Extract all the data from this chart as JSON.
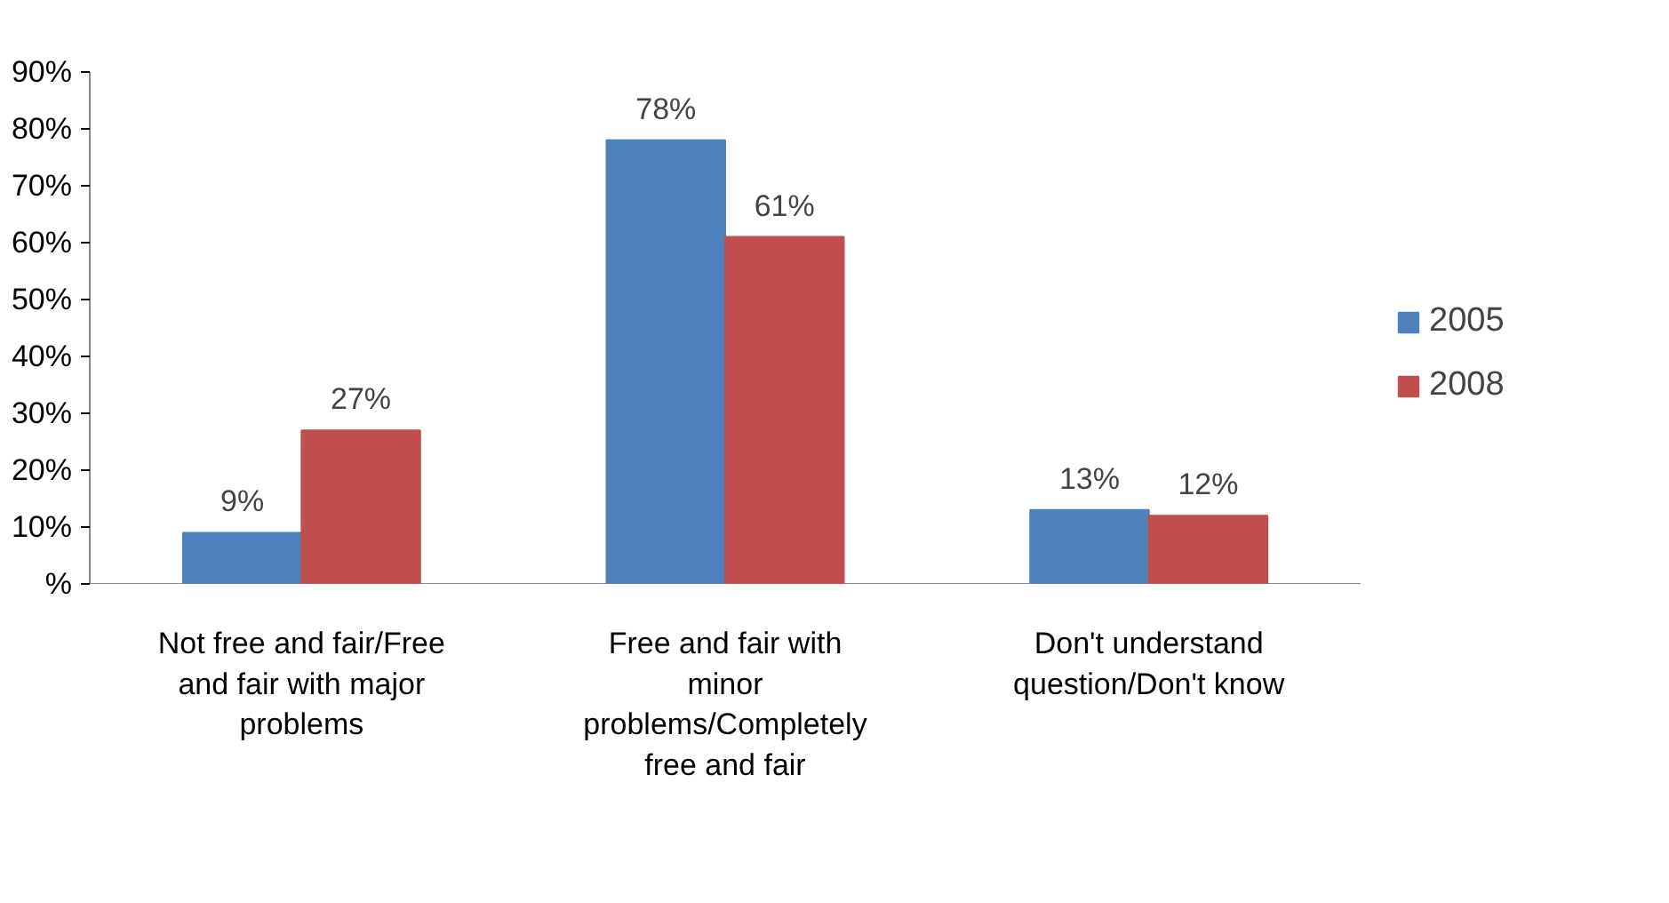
{
  "chart_data": {
    "type": "bar",
    "categories": [
      "Not free and fair/Free and fair with major problems",
      "Free and fair with minor problems/Completely free and fair",
      "Don't understand question/Don't know"
    ],
    "series": [
      {
        "name": "2005",
        "color": "#4f81bd",
        "values": [
          9,
          78,
          13
        ],
        "value_labels": [
          "9%",
          "78%",
          "13%"
        ]
      },
      {
        "name": "2008",
        "color": "#c0504d",
        "values": [
          27,
          61,
          12
        ],
        "value_labels": [
          "27%",
          "61%",
          "12%"
        ]
      }
    ],
    "ylim": [
      0,
      90
    ],
    "yticks": [
      {
        "value": 0,
        "label": "%"
      },
      {
        "value": 10,
        "label": "10%"
      },
      {
        "value": 20,
        "label": "20%"
      },
      {
        "value": 30,
        "label": "30%"
      },
      {
        "value": 40,
        "label": "40%"
      },
      {
        "value": 50,
        "label": "50%"
      },
      {
        "value": 60,
        "label": "60%"
      },
      {
        "value": 70,
        "label": "70%"
      },
      {
        "value": 80,
        "label": "80%"
      },
      {
        "value": 90,
        "label": "90%"
      }
    ],
    "grid": false,
    "legend": "right"
  }
}
